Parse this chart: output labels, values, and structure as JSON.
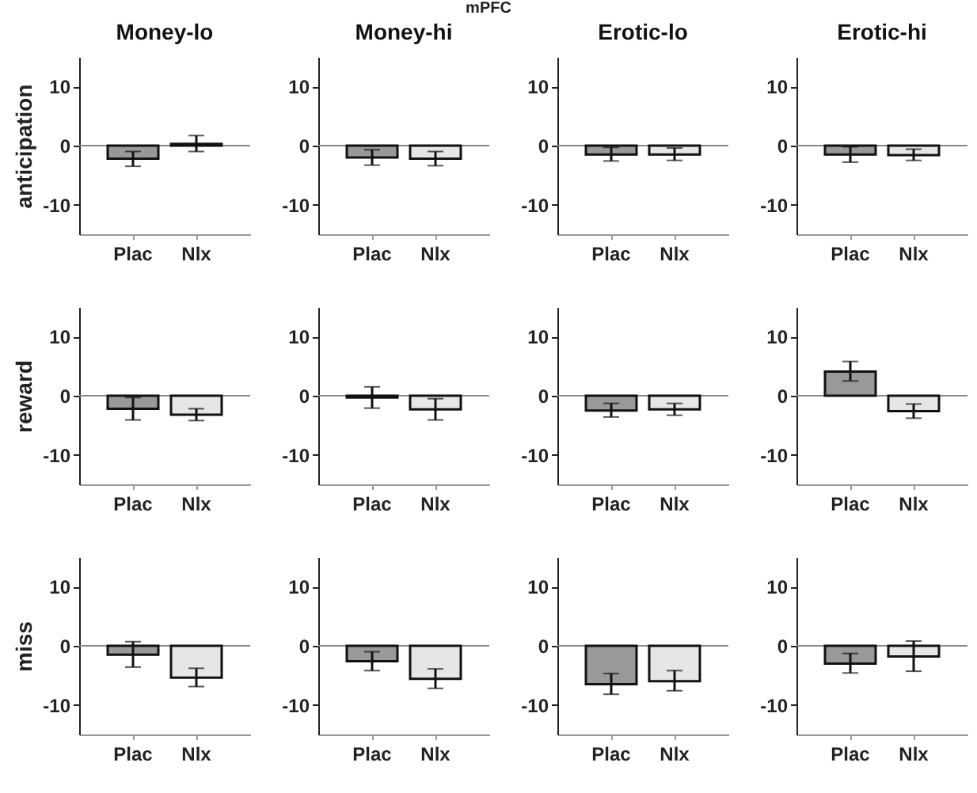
{
  "chart_data": [
    {
      "type": "bar",
      "title": "Money-lo",
      "ylabel": "anticipation",
      "annotations": [
        "mPFC"
      ],
      "categories": [
        "Plac",
        "Nlx"
      ],
      "values": [
        -2.2,
        0.3
      ],
      "colors": [
        "#999999",
        "#e6e6e6"
      ],
      "errors": [
        [
          -3.5,
          -1.0
        ],
        [
          -1.0,
          1.7
        ]
      ],
      "ylim": [
        -15,
        15
      ],
      "yticks": [
        -10,
        0,
        10
      ],
      "ref_lines": [
        {
          "axis": "y",
          "value": 0,
          "color": "#888888"
        }
      ]
    },
    {
      "type": "bar",
      "title": "Money-hi",
      "categories": [
        "Plac",
        "Nlx"
      ],
      "values": [
        -2.0,
        -2.2
      ],
      "colors": [
        "#999999",
        "#e6e6e6"
      ],
      "errors": [
        [
          -3.3,
          -0.7
        ],
        [
          -3.4,
          -1.0
        ]
      ],
      "ylim": [
        -15,
        15
      ],
      "yticks": [
        -10,
        0,
        10
      ],
      "ref_lines": [
        {
          "axis": "y",
          "value": 0,
          "color": "#888888"
        }
      ]
    },
    {
      "type": "bar",
      "title": "Erotic-lo",
      "categories": [
        "Plac",
        "Nlx"
      ],
      "values": [
        -1.5,
        -1.5
      ],
      "colors": [
        "#999999",
        "#e6e6e6"
      ],
      "errors": [
        [
          -2.6,
          -0.3
        ],
        [
          -2.5,
          -0.4
        ]
      ],
      "ylim": [
        -15,
        15
      ],
      "yticks": [
        -10,
        0,
        10
      ],
      "ref_lines": [
        {
          "axis": "y",
          "value": 0,
          "color": "#888888"
        }
      ]
    },
    {
      "type": "bar",
      "title": "Erotic-hi",
      "categories": [
        "Plac",
        "Nlx"
      ],
      "values": [
        -1.5,
        -1.6
      ],
      "colors": [
        "#999999",
        "#e6e6e6"
      ],
      "errors": [
        [
          -2.8,
          -0.2
        ],
        [
          -2.5,
          -0.6
        ]
      ],
      "ylim": [
        -15,
        15
      ],
      "yticks": [
        -10,
        0,
        10
      ],
      "ref_lines": [
        {
          "axis": "y",
          "value": 0,
          "color": "#888888"
        }
      ]
    },
    {
      "type": "bar",
      "ylabel": "reward",
      "categories": [
        "Plac",
        "Nlx"
      ],
      "values": [
        -2.2,
        -3.2
      ],
      "colors": [
        "#999999",
        "#e6e6e6"
      ],
      "errors": [
        [
          -4.1,
          -0.3
        ],
        [
          -4.2,
          -2.2
        ]
      ],
      "ylim": [
        -15,
        15
      ],
      "yticks": [
        -10,
        0,
        10
      ],
      "ref_lines": [
        {
          "axis": "y",
          "value": 0,
          "color": "#888888"
        }
      ]
    },
    {
      "type": "bar",
      "categories": [
        "Plac",
        "Nlx"
      ],
      "values": [
        -0.3,
        -2.3
      ],
      "colors": [
        "#999999",
        "#e6e6e6"
      ],
      "errors": [
        [
          -2.1,
          1.5
        ],
        [
          -4.1,
          -0.5
        ]
      ],
      "ylim": [
        -15,
        15
      ],
      "yticks": [
        -10,
        0,
        10
      ],
      "ref_lines": [
        {
          "axis": "y",
          "value": 0,
          "color": "#888888"
        }
      ]
    },
    {
      "type": "bar",
      "categories": [
        "Plac",
        "Nlx"
      ],
      "values": [
        -2.5,
        -2.3
      ],
      "colors": [
        "#999999",
        "#e6e6e6"
      ],
      "errors": [
        [
          -3.6,
          -1.3
        ],
        [
          -3.3,
          -1.3
        ]
      ],
      "ylim": [
        -15,
        15
      ],
      "yticks": [
        -10,
        0,
        10
      ],
      "ref_lines": [
        {
          "axis": "y",
          "value": 0,
          "color": "#888888"
        }
      ]
    },
    {
      "type": "bar",
      "categories": [
        "Plac",
        "Nlx"
      ],
      "values": [
        4.1,
        -2.6
      ],
      "colors": [
        "#999999",
        "#e6e6e6"
      ],
      "errors": [
        [
          2.5,
          5.8
        ],
        [
          -3.8,
          -1.4
        ]
      ],
      "ylim": [
        -15,
        15
      ],
      "yticks": [
        -10,
        0,
        10
      ],
      "ref_lines": [
        {
          "axis": "y",
          "value": 0,
          "color": "#888888"
        }
      ]
    },
    {
      "type": "bar",
      "ylabel": "miss",
      "categories": [
        "Plac",
        "Nlx"
      ],
      "values": [
        -1.5,
        -5.4
      ],
      "colors": [
        "#999999",
        "#e6e6e6"
      ],
      "errors": [
        [
          -3.6,
          0.7
        ],
        [
          -6.9,
          -3.8
        ]
      ],
      "ylim": [
        -15,
        15
      ],
      "yticks": [
        -10,
        0,
        10
      ],
      "ref_lines": [
        {
          "axis": "y",
          "value": 0,
          "color": "#888888"
        }
      ]
    },
    {
      "type": "bar",
      "categories": [
        "Plac",
        "Nlx"
      ],
      "values": [
        -2.6,
        -5.6
      ],
      "colors": [
        "#999999",
        "#e6e6e6"
      ],
      "errors": [
        [
          -4.2,
          -1.0
        ],
        [
          -7.2,
          -3.9
        ]
      ],
      "ylim": [
        -15,
        15
      ],
      "yticks": [
        -10,
        0,
        10
      ],
      "ref_lines": [
        {
          "axis": "y",
          "value": 0,
          "color": "#888888"
        }
      ]
    },
    {
      "type": "bar",
      "categories": [
        "Plac",
        "Nlx"
      ],
      "values": [
        -6.5,
        -6.0
      ],
      "colors": [
        "#999999",
        "#e6e6e6"
      ],
      "errors": [
        [
          -8.2,
          -4.7
        ],
        [
          -7.6,
          -4.2
        ]
      ],
      "ylim": [
        -15,
        15
      ],
      "yticks": [
        -10,
        0,
        10
      ],
      "ref_lines": [
        {
          "axis": "y",
          "value": 0,
          "color": "#888888"
        }
      ]
    },
    {
      "type": "bar",
      "categories": [
        "Plac",
        "Nlx"
      ],
      "values": [
        -3.0,
        -1.8
      ],
      "colors": [
        "#999999",
        "#e6e6e6"
      ],
      "errors": [
        [
          -4.6,
          -1.3
        ],
        [
          -4.3,
          0.8
        ]
      ],
      "ylim": [
        -15,
        15
      ],
      "yticks": [
        -10,
        0,
        10
      ],
      "ref_lines": [
        {
          "axis": "y",
          "value": 0,
          "color": "#888888"
        }
      ]
    }
  ]
}
